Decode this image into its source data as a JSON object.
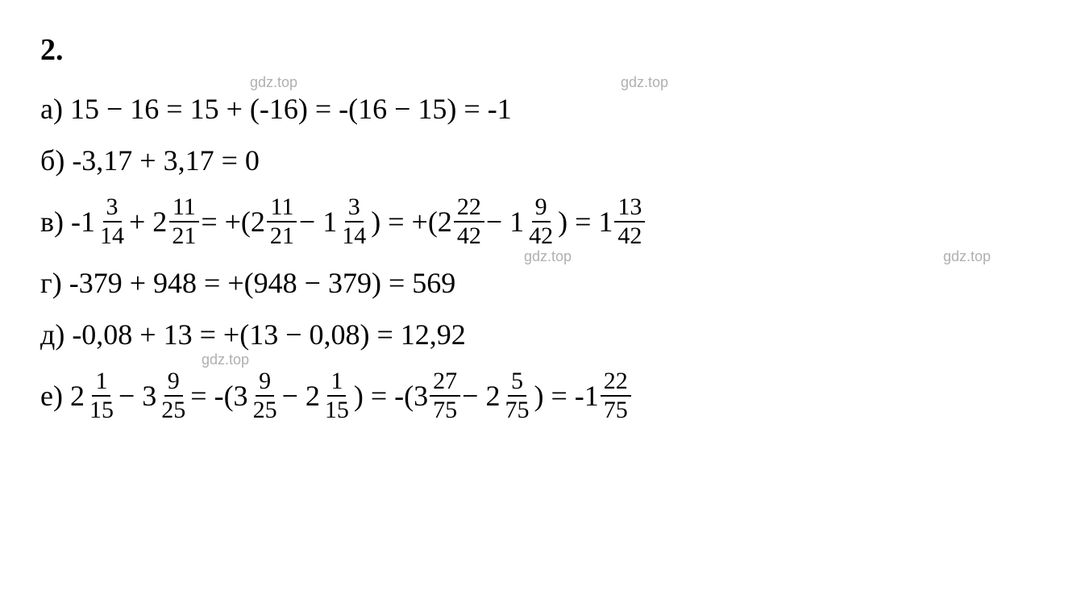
{
  "problem_number": "2.",
  "watermark_text": "gdz.top",
  "colors": {
    "text": "#000000",
    "background": "#ffffff",
    "watermark": "#b0b0b0",
    "fraction_bar": "#000000"
  },
  "typography": {
    "main_fontsize": 36,
    "fraction_fontsize": 30,
    "watermark_fontsize": 18,
    "font_family": "Times New Roman"
  },
  "lines": {
    "a": {
      "label": "а)",
      "expression_parts": {
        "p1": "15 − 16 = 15 + (-16) = -(16 − 15) = -1"
      }
    },
    "b": {
      "label": "б)",
      "expression_parts": {
        "p1": "-3,17 + 3,17 = 0"
      }
    },
    "c": {
      "label": "в)",
      "t1": "-1",
      "f1": {
        "num": "3",
        "den": "14"
      },
      "t2": " + 2",
      "f2": {
        "num": "11",
        "den": "21"
      },
      "t3": " = +(2",
      "f3": {
        "num": "11",
        "den": "21"
      },
      "t4": " − 1",
      "f4": {
        "num": "3",
        "den": "14"
      },
      "t5": ") = +(2",
      "f5": {
        "num": "22",
        "den": "42"
      },
      "t6": " − 1",
      "f6": {
        "num": "9",
        "den": "42"
      },
      "t7": ") = 1",
      "f7": {
        "num": "13",
        "den": "42"
      }
    },
    "d": {
      "label": "г)",
      "expression_parts": {
        "p1": "-379 + 948 = +(948 − 379) = 569"
      }
    },
    "e": {
      "label": "д)",
      "expression_parts": {
        "p1": "-0,08 + 13 = +(13 − 0,08) = 12,92"
      }
    },
    "f": {
      "label": "е)",
      "t1": "2",
      "f1": {
        "num": "1",
        "den": "15"
      },
      "t2": " − 3",
      "f2": {
        "num": "9",
        "den": "25"
      },
      "t3": " = -(3",
      "f3": {
        "num": "9",
        "den": "25"
      },
      "t4": " − 2",
      "f4": {
        "num": "1",
        "den": "15"
      },
      "t5": ") = -(3",
      "f5": {
        "num": "27",
        "den": "75"
      },
      "t6": " − 2",
      "f6": {
        "num": "5",
        "den": "75"
      },
      "t7": ") = -1",
      "f7": {
        "num": "22",
        "den": "75"
      }
    }
  }
}
